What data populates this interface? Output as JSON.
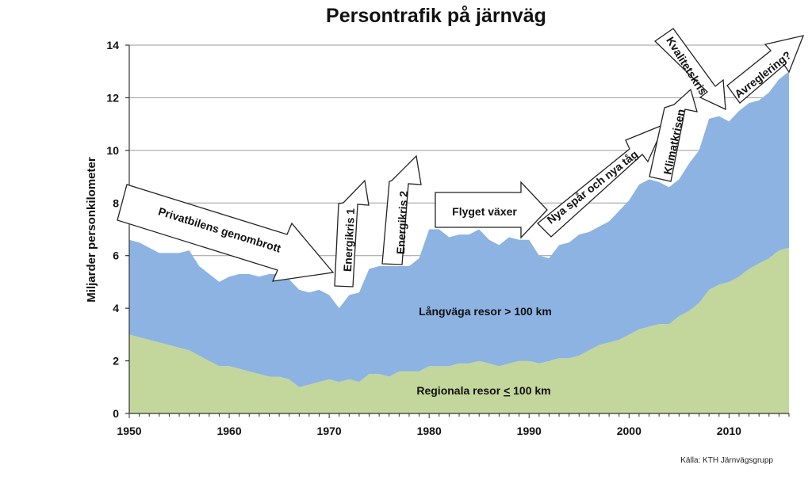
{
  "chart_data": {
    "type": "area",
    "title": "Persontrafik på järnväg",
    "ylabel": "Miljarder personkilometer",
    "xlabel": "",
    "xlim": [
      1950,
      2016
    ],
    "ylim": [
      0,
      14
    ],
    "x_ticks": [
      1950,
      1960,
      1970,
      1980,
      1990,
      2000,
      2010
    ],
    "y_ticks": [
      0,
      2,
      4,
      6,
      8,
      10,
      12,
      14
    ],
    "grid": "horizontal",
    "stacked": true,
    "x": [
      1950,
      1951,
      1952,
      1953,
      1954,
      1955,
      1956,
      1957,
      1958,
      1959,
      1960,
      1961,
      1962,
      1963,
      1964,
      1965,
      1966,
      1967,
      1968,
      1969,
      1970,
      1971,
      1972,
      1973,
      1974,
      1975,
      1976,
      1977,
      1978,
      1979,
      1980,
      1981,
      1982,
      1983,
      1984,
      1985,
      1986,
      1987,
      1988,
      1989,
      1990,
      1991,
      1992,
      1993,
      1994,
      1995,
      1996,
      1997,
      1998,
      1999,
      2000,
      2001,
      2002,
      2003,
      2004,
      2005,
      2006,
      2007,
      2008,
      2009,
      2010,
      2011,
      2012,
      2013,
      2014,
      2015,
      2016
    ],
    "series": [
      {
        "name": "Regionala resor ≤ 100 km",
        "color": "#c3d69b",
        "values": [
          3.0,
          2.9,
          2.8,
          2.7,
          2.6,
          2.5,
          2.4,
          2.2,
          2.0,
          1.8,
          1.8,
          1.7,
          1.6,
          1.5,
          1.4,
          1.4,
          1.3,
          1.0,
          1.1,
          1.2,
          1.3,
          1.2,
          1.3,
          1.2,
          1.5,
          1.5,
          1.4,
          1.6,
          1.6,
          1.6,
          1.8,
          1.8,
          1.8,
          1.9,
          1.9,
          2.0,
          1.9,
          1.8,
          1.9,
          2.0,
          2.0,
          1.9,
          2.0,
          2.1,
          2.1,
          2.2,
          2.4,
          2.6,
          2.7,
          2.8,
          3.0,
          3.2,
          3.3,
          3.4,
          3.4,
          3.7,
          3.9,
          4.2,
          4.7,
          4.9,
          5.0,
          5.2,
          5.5,
          5.7,
          5.9,
          6.2,
          6.3
        ]
      },
      {
        "name": "Långväga resor > 100 km",
        "color": "#8db3e2",
        "values": [
          3.6,
          3.6,
          3.5,
          3.4,
          3.5,
          3.6,
          3.8,
          3.4,
          3.3,
          3.2,
          3.4,
          3.6,
          3.7,
          3.7,
          3.9,
          3.9,
          3.8,
          3.7,
          3.5,
          3.5,
          3.2,
          2.8,
          3.2,
          3.4,
          4.0,
          4.1,
          4.2,
          4.0,
          4.0,
          4.3,
          5.2,
          5.2,
          4.9,
          4.9,
          4.9,
          5.0,
          4.7,
          4.6,
          4.8,
          4.6,
          4.6,
          4.1,
          3.9,
          4.3,
          4.4,
          4.6,
          4.5,
          4.5,
          4.6,
          4.9,
          5.1,
          5.5,
          5.6,
          5.4,
          5.2,
          5.2,
          5.6,
          5.8,
          6.5,
          6.4,
          6.1,
          6.3,
          6.3,
          6.2,
          6.3,
          6.5,
          6.7
        ]
      }
    ],
    "annotations": [
      {
        "id": "privatbilens",
        "text": "Privatbilens genombrott"
      },
      {
        "id": "energikris1",
        "text": "Energikris 1"
      },
      {
        "id": "energikris2",
        "text": "Energikris 2"
      },
      {
        "id": "flyget",
        "text": "Flyget växer"
      },
      {
        "id": "nyaspar",
        "text": "Nya spår och nya tåg"
      },
      {
        "id": "klimatkrisen",
        "text": "Klimatkrisen"
      },
      {
        "id": "kvalitetskris",
        "text": "Kvalitetskris"
      },
      {
        "id": "avreglering",
        "text": "Avreglering?"
      }
    ],
    "series_labels": {
      "regional_prefix": "Regionala resor ",
      "regional_symbol": "<",
      "regional_suffix": " 100 km",
      "longdistance": "Långväga resor > 100 km"
    },
    "source": "Källa: KTH Järnvägsgrupp"
  }
}
